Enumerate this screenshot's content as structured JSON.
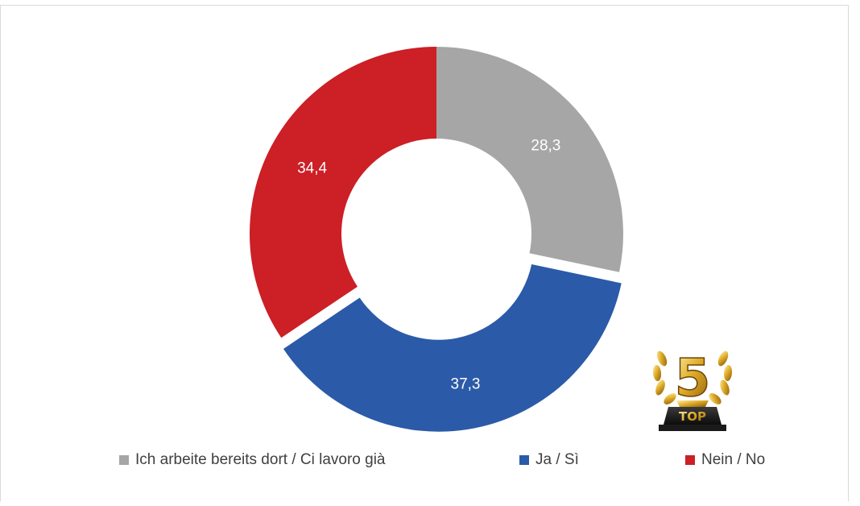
{
  "chart_data": {
    "type": "pie",
    "donut": true,
    "title": "",
    "categories": [
      "Ich arbeite bereits dort / Ci lavoro già",
      "Ja / Sì",
      "Nein / No"
    ],
    "values": [
      28.3,
      37.3,
      34.4
    ],
    "labels": [
      "28,3",
      "37,3",
      "34,4"
    ],
    "colors": [
      "#a6a6a6",
      "#2b5aa8",
      "#cc1f26"
    ],
    "exploded": [
      false,
      true,
      false
    ],
    "legend_position": "bottom"
  },
  "badge": {
    "number": "5",
    "text": "TOP"
  }
}
